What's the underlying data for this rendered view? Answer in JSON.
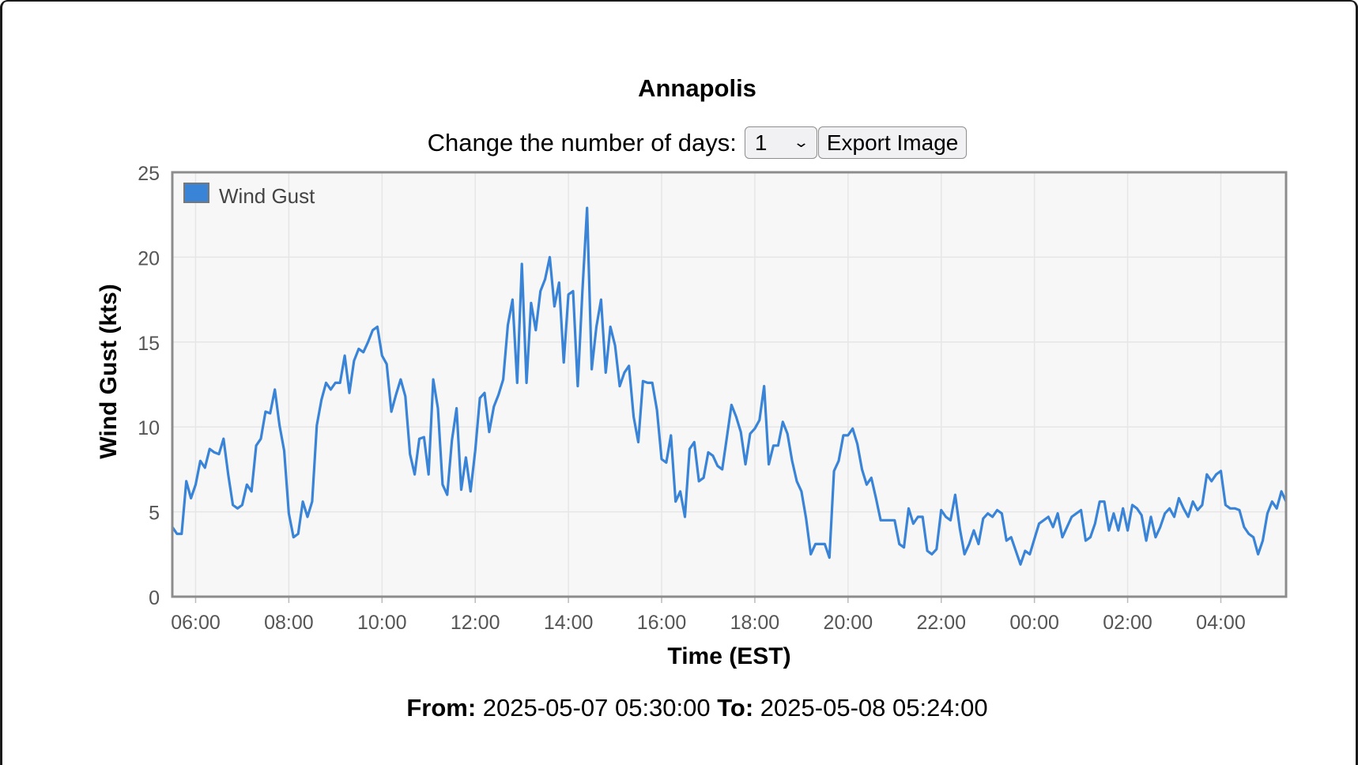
{
  "page": {
    "title": "Annapolis",
    "controls": {
      "days_label": "Change the number of days:",
      "days_value": "1",
      "export_label": "Export Image"
    },
    "footer": {
      "from_label": "From:",
      "from_value": "2025-05-07 05:30:00",
      "to_label": "To:",
      "to_value": "2025-05-08 05:24:00"
    }
  },
  "chart_data": {
    "type": "line",
    "title": "Annapolis",
    "xlabel": "Time (EST)",
    "ylabel": "Wind Gust (kts)",
    "ylim": [
      0,
      25
    ],
    "yticks": [
      0,
      5,
      10,
      15,
      20,
      25
    ],
    "x_range": [
      "2025-05-07 05:30",
      "2025-05-08 05:24"
    ],
    "x_ticks": [
      {
        "t": "2025-05-07 06:00",
        "label": "06:00"
      },
      {
        "t": "2025-05-07 08:00",
        "label": "08:00"
      },
      {
        "t": "2025-05-07 10:00",
        "label": "10:00"
      },
      {
        "t": "2025-05-07 12:00",
        "label": "12:00"
      },
      {
        "t": "2025-05-07 14:00",
        "label": "14:00"
      },
      {
        "t": "2025-05-07 16:00",
        "label": "16:00"
      },
      {
        "t": "2025-05-07 18:00",
        "label": "18:00"
      },
      {
        "t": "2025-05-07 20:00",
        "label": "20:00"
      },
      {
        "t": "2025-05-07 22:00",
        "label": "22:00"
      },
      {
        "t": "2025-05-08 00:00",
        "label": "00:00"
      },
      {
        "t": "2025-05-08 02:00",
        "label": "02:00"
      },
      {
        "t": "2025-05-08 04:00",
        "label": "04:00"
      }
    ],
    "grid": true,
    "legend": "top-left",
    "series": [
      {
        "name": "Wind Gust",
        "color": "#3a84d8",
        "start": "2025-05-07 05:30",
        "end": "2025-05-08 05:24",
        "values": [
          4.1,
          3.7,
          3.7,
          6.8,
          5.8,
          6.6,
          8.0,
          7.6,
          8.7,
          8.5,
          8.4,
          9.3,
          7.2,
          5.4,
          5.2,
          5.4,
          6.6,
          6.2,
          8.9,
          9.3,
          10.9,
          10.8,
          12.2,
          10.1,
          8.6,
          4.9,
          3.5,
          3.7,
          5.6,
          4.7,
          5.6,
          10.1,
          11.6,
          12.6,
          12.2,
          12.6,
          12.6,
          14.2,
          12.0,
          13.9,
          14.6,
          14.4,
          15.0,
          15.7,
          15.9,
          14.2,
          13.7,
          10.9,
          11.9,
          12.8,
          11.8,
          8.4,
          7.2,
          9.3,
          9.4,
          7.2,
          12.8,
          11.1,
          6.6,
          6.0,
          9.2,
          11.1,
          6.3,
          8.2,
          6.2,
          8.6,
          11.7,
          12.0,
          9.7,
          11.2,
          11.9,
          12.8,
          16.0,
          17.5,
          12.6,
          19.6,
          12.6,
          17.3,
          15.7,
          18.0,
          18.7,
          20.0,
          17.1,
          18.5,
          13.8,
          17.8,
          18.0,
          12.4,
          18.0,
          22.9,
          13.4,
          15.9,
          17.5,
          13.2,
          15.9,
          14.8,
          12.4,
          13.2,
          13.6,
          10.6,
          9.1,
          12.7,
          12.6,
          12.6,
          11.0,
          8.1,
          7.9,
          9.5,
          5.6,
          6.2,
          4.7,
          8.7,
          9.1,
          6.8,
          7.0,
          8.5,
          8.3,
          7.7,
          7.5,
          9.4,
          11.3,
          10.6,
          9.7,
          7.8,
          9.6,
          9.9,
          10.4,
          12.4,
          7.8,
          8.9,
          8.9,
          10.3,
          9.6,
          8.0,
          6.8,
          6.2,
          4.6,
          2.5,
          3.1,
          3.1,
          3.1,
          2.3,
          7.4,
          8.0,
          9.5,
          9.5,
          9.9,
          9.0,
          7.5,
          6.6,
          7.0,
          5.8,
          4.5,
          4.5,
          4.5,
          4.5,
          3.1,
          2.9,
          5.2,
          4.3,
          4.7,
          4.7,
          2.7,
          2.5,
          2.8,
          5.1,
          4.7,
          4.5,
          6.0,
          4.0,
          2.5,
          3.1,
          3.9,
          3.1,
          4.6,
          4.9,
          4.7,
          5.1,
          4.9,
          3.3,
          3.5,
          2.7,
          1.9,
          2.7,
          2.5,
          3.4,
          4.3,
          4.5,
          4.7,
          4.1,
          4.9,
          3.5,
          4.1,
          4.7,
          4.9,
          5.1,
          3.3,
          3.5,
          4.3,
          5.6,
          5.6,
          3.9,
          4.9,
          3.9,
          5.2,
          3.9,
          5.4,
          5.2,
          4.8,
          3.3,
          4.7,
          3.5,
          4.1,
          4.9,
          5.2,
          4.7,
          5.8,
          5.2,
          4.7,
          5.6,
          5.1,
          5.4,
          7.2,
          6.8,
          7.2,
          7.4,
          5.4,
          5.2,
          5.2,
          5.1,
          4.1,
          3.7,
          3.5,
          2.5,
          3.3,
          4.9,
          5.6,
          5.2,
          6.2,
          5.6
        ]
      }
    ]
  }
}
